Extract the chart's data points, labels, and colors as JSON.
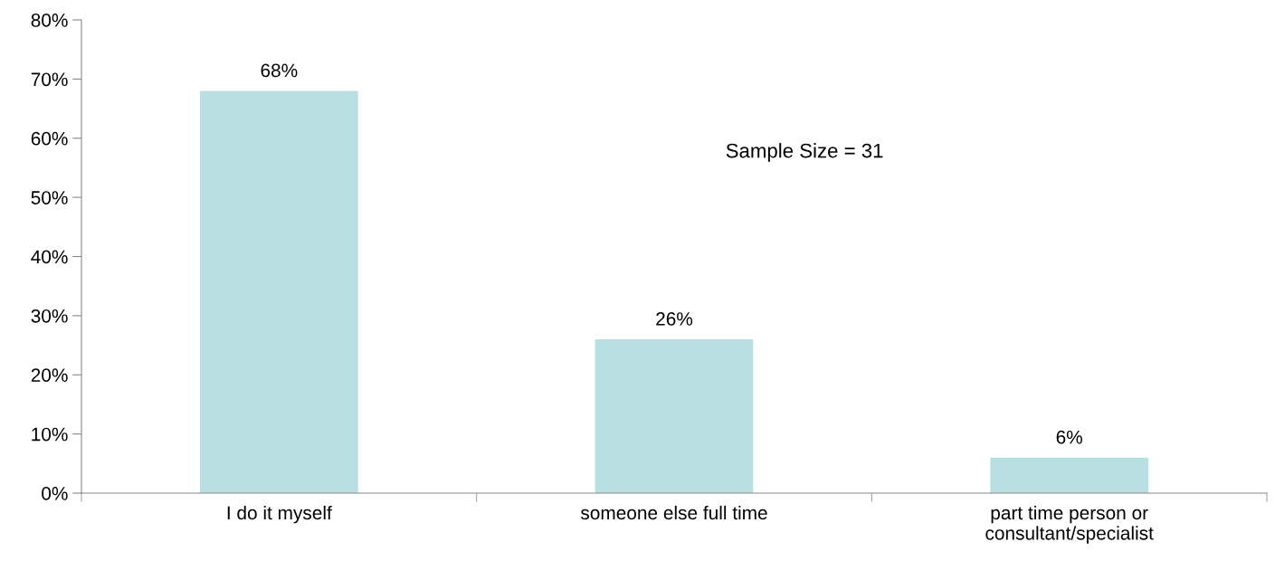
{
  "chart_data": {
    "type": "bar",
    "categories": [
      "I do it myself",
      "someone else full time",
      "part time person or\nconsultant/specialist"
    ],
    "values": [
      68,
      26,
      6
    ],
    "value_labels": [
      "68%",
      "26%",
      "6%"
    ],
    "color": "#b8dfe1",
    "ylim": [
      0,
      80
    ],
    "yticks": [
      {
        "value": 0,
        "label": "0%"
      },
      {
        "value": 10,
        "label": "10%"
      },
      {
        "value": 20,
        "label": "20%"
      },
      {
        "value": 30,
        "label": "30%"
      },
      {
        "value": 40,
        "label": "40%"
      },
      {
        "value": 50,
        "label": "50%"
      },
      {
        "value": 60,
        "label": "60%"
      },
      {
        "value": 70,
        "label": "70%"
      },
      {
        "value": 80,
        "label": "80%"
      }
    ],
    "grid": false,
    "legend": false,
    "annotations": [
      "Sample Size = 31"
    ]
  }
}
